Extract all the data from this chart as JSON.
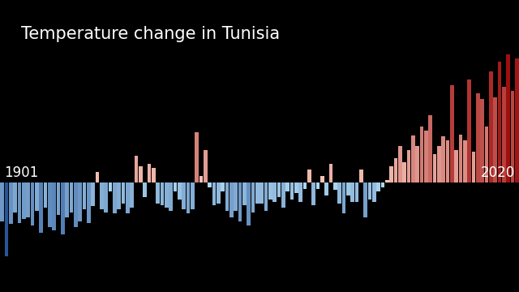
{
  "title": "Temperature change in Tunisia",
  "year_start": 1901,
  "year_end": 2020,
  "background_color": "#000000",
  "title_color": "#ffffff",
  "label_color": "#ffffff",
  "title_fontsize": 15,
  "label_fontsize": 12,
  "vmin": -1.5,
  "vmax": 2.3,
  "anomalies": [
    -0.65,
    -1.25,
    -0.7,
    -0.5,
    -0.68,
    -0.62,
    -0.58,
    -0.72,
    -0.48,
    -0.85,
    -0.42,
    -0.75,
    -0.8,
    -0.55,
    -0.88,
    -0.58,
    -0.5,
    -0.75,
    -0.65,
    -0.45,
    -0.68,
    -0.4,
    0.18,
    -0.45,
    -0.5,
    -0.15,
    -0.52,
    -0.45,
    -0.35,
    -0.52,
    -0.42,
    0.45,
    0.28,
    -0.25,
    0.32,
    0.25,
    -0.35,
    -0.38,
    -0.42,
    -0.48,
    -0.15,
    -0.28,
    -0.45,
    -0.52,
    -0.45,
    0.85,
    0.12,
    0.55,
    -0.08,
    -0.38,
    -0.35,
    -0.15,
    -0.48,
    -0.58,
    -0.48,
    -0.65,
    -0.38,
    -0.72,
    -0.5,
    -0.35,
    -0.35,
    -0.48,
    -0.28,
    -0.32,
    -0.25,
    -0.42,
    -0.15,
    -0.28,
    -0.18,
    -0.32,
    -0.1,
    0.22,
    -0.38,
    -0.1,
    0.12,
    -0.22,
    0.32,
    -0.12,
    -0.35,
    -0.52,
    -0.22,
    -0.32,
    -0.32,
    0.22,
    -0.58,
    -0.28,
    -0.32,
    -0.15,
    -0.08,
    0.05,
    0.28,
    0.42,
    0.62,
    0.35,
    0.55,
    0.8,
    0.62,
    0.95,
    0.88,
    1.15,
    0.48,
    0.62,
    0.78,
    0.72,
    1.65,
    0.55,
    0.82,
    0.72,
    1.75,
    0.52,
    1.52,
    1.42,
    0.95,
    1.88,
    1.45,
    2.05,
    1.62,
    2.18,
    1.55,
    2.1
  ]
}
